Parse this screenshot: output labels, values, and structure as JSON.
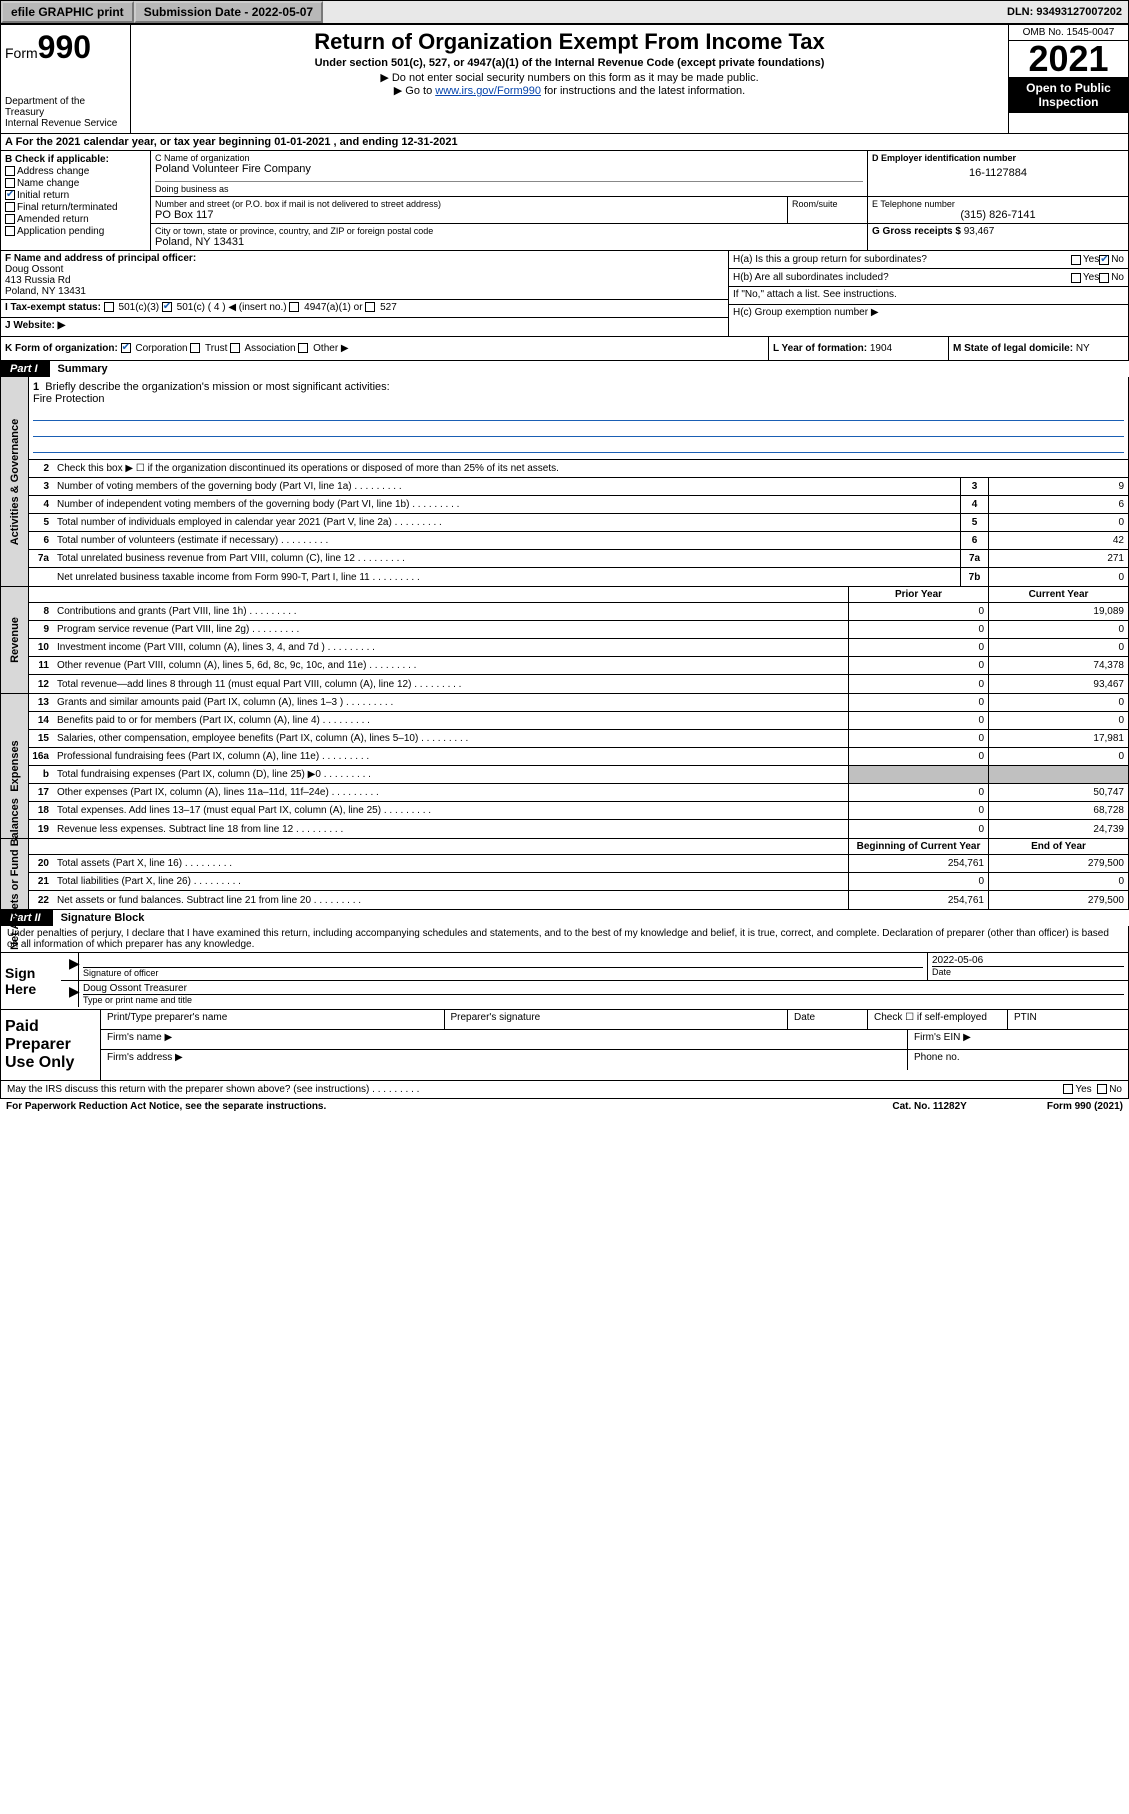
{
  "topbar": {
    "efile": "efile GRAPHIC print",
    "submission_label": "Submission Date - 2022-05-07",
    "dln": "DLN: 93493127007202"
  },
  "header": {
    "form_prefix": "Form",
    "form_number": "990",
    "dept": "Department of the Treasury",
    "irs": "Internal Revenue Service",
    "title": "Return of Organization Exempt From Income Tax",
    "subtitle": "Under section 501(c), 527, or 4947(a)(1) of the Internal Revenue Code (except private foundations)",
    "note1": "▶ Do not enter social security numbers on this form as it may be made public.",
    "note2_pre": "▶ Go to ",
    "note2_link": "www.irs.gov/Form990",
    "note2_post": " for instructions and the latest information.",
    "omb": "OMB No. 1545-0047",
    "year": "2021",
    "open_public": "Open to Public Inspection"
  },
  "row_a": "A For the 2021 calendar year, or tax year beginning 01-01-2021   , and ending 12-31-2021",
  "section_b": {
    "label": "B Check if applicable:",
    "items": [
      "Address change",
      "Name change",
      "Initial return",
      "Final return/terminated",
      "Amended return",
      "Application pending"
    ],
    "checked_index": 2
  },
  "section_c": {
    "name_label": "C Name of organization",
    "name": "Poland Volunteer Fire Company",
    "dba_label": "Doing business as",
    "dba": "",
    "street_label": "Number and street (or P.O. box if mail is not delivered to street address)",
    "room_label": "Room/suite",
    "street": "PO Box 117",
    "city_label": "City or town, state or province, country, and ZIP or foreign postal code",
    "city": "Poland, NY  13431"
  },
  "section_d": {
    "label": "D Employer identification number",
    "value": "16-1127884"
  },
  "section_e": {
    "label": "E Telephone number",
    "value": "(315) 826-7141"
  },
  "section_g": {
    "label": "G Gross receipts $",
    "value": "93,467"
  },
  "section_f": {
    "label": "F Name and address of principal officer:",
    "name": "Doug Ossont",
    "street": "413 Russia Rd",
    "city": "Poland, NY  13431"
  },
  "section_h": {
    "ha": "H(a)  Is this a group return for subordinates?",
    "ha_yes": "Yes",
    "ha_no": "No",
    "hb": "H(b)  Are all subordinates included?",
    "hb_yes": "Yes",
    "hb_no": "No",
    "hb_note": "If \"No,\" attach a list. See instructions.",
    "hc": "H(c)  Group exemption number ▶"
  },
  "section_i": {
    "label": "I   Tax-exempt status:",
    "opts": [
      "501(c)(3)",
      "501(c) ( 4 ) ◀ (insert no.)",
      "4947(a)(1) or",
      "527"
    ],
    "checked_index": 1
  },
  "section_j": {
    "label": "J   Website: ▶",
    "value": ""
  },
  "section_k": {
    "label": "K Form of organization:",
    "opts": [
      "Corporation",
      "Trust",
      "Association",
      "Other ▶"
    ],
    "checked_index": 0
  },
  "section_l": {
    "label": "L Year of formation:",
    "value": "1904"
  },
  "section_m": {
    "label": "M State of legal domicile:",
    "value": "NY"
  },
  "part1": {
    "label": "Part I",
    "title": "Summary"
  },
  "summary": {
    "q1": "Briefly describe the organization's mission or most significant activities:",
    "q1_val": "Fire Protection",
    "q2": "Check this box ▶ ☐  if the organization discontinued its operations or disposed of more than 25% of its net assets.",
    "rows_gov": [
      {
        "n": "3",
        "t": "Number of voting members of the governing body (Part VI, line 1a)",
        "b": "3",
        "v": "9"
      },
      {
        "n": "4",
        "t": "Number of independent voting members of the governing body (Part VI, line 1b)",
        "b": "4",
        "v": "6"
      },
      {
        "n": "5",
        "t": "Total number of individuals employed in calendar year 2021 (Part V, line 2a)",
        "b": "5",
        "v": "0"
      },
      {
        "n": "6",
        "t": "Total number of volunteers (estimate if necessary)",
        "b": "6",
        "v": "42"
      },
      {
        "n": "7a",
        "t": "Total unrelated business revenue from Part VIII, column (C), line 12",
        "b": "7a",
        "v": "271"
      },
      {
        "n": "",
        "t": "Net unrelated business taxable income from Form 990-T, Part I, line 11",
        "b": "7b",
        "v": "0"
      }
    ],
    "col_prior": "Prior Year",
    "col_current": "Current Year",
    "rows_rev": [
      {
        "n": "8",
        "t": "Contributions and grants (Part VIII, line 1h)",
        "p": "0",
        "c": "19,089"
      },
      {
        "n": "9",
        "t": "Program service revenue (Part VIII, line 2g)",
        "p": "0",
        "c": "0"
      },
      {
        "n": "10",
        "t": "Investment income (Part VIII, column (A), lines 3, 4, and 7d )",
        "p": "0",
        "c": "0"
      },
      {
        "n": "11",
        "t": "Other revenue (Part VIII, column (A), lines 5, 6d, 8c, 9c, 10c, and 11e)",
        "p": "0",
        "c": "74,378"
      },
      {
        "n": "12",
        "t": "Total revenue—add lines 8 through 11 (must equal Part VIII, column (A), line 12)",
        "p": "0",
        "c": "93,467"
      }
    ],
    "rows_exp": [
      {
        "n": "13",
        "t": "Grants and similar amounts paid (Part IX, column (A), lines 1–3 )",
        "p": "0",
        "c": "0"
      },
      {
        "n": "14",
        "t": "Benefits paid to or for members (Part IX, column (A), line 4)",
        "p": "0",
        "c": "0"
      },
      {
        "n": "15",
        "t": "Salaries, other compensation, employee benefits (Part IX, column (A), lines 5–10)",
        "p": "0",
        "c": "17,981"
      },
      {
        "n": "16a",
        "t": "Professional fundraising fees (Part IX, column (A), line 11e)",
        "p": "0",
        "c": "0"
      },
      {
        "n": "b",
        "t": "Total fundraising expenses (Part IX, column (D), line 25) ▶0",
        "p": "",
        "c": "",
        "gray": true
      },
      {
        "n": "17",
        "t": "Other expenses (Part IX, column (A), lines 11a–11d, 11f–24e)",
        "p": "0",
        "c": "50,747"
      },
      {
        "n": "18",
        "t": "Total expenses. Add lines 13–17 (must equal Part IX, column (A), line 25)",
        "p": "0",
        "c": "68,728"
      },
      {
        "n": "19",
        "t": "Revenue less expenses. Subtract line 18 from line 12",
        "p": "0",
        "c": "24,739"
      }
    ],
    "col_begin": "Beginning of Current Year",
    "col_end": "End of Year",
    "rows_net": [
      {
        "n": "20",
        "t": "Total assets (Part X, line 16)",
        "p": "254,761",
        "c": "279,500"
      },
      {
        "n": "21",
        "t": "Total liabilities (Part X, line 26)",
        "p": "0",
        "c": "0"
      },
      {
        "n": "22",
        "t": "Net assets or fund balances. Subtract line 21 from line 20",
        "p": "254,761",
        "c": "279,500"
      }
    ],
    "side_gov": "Activities & Governance",
    "side_rev": "Revenue",
    "side_exp": "Expenses",
    "side_net": "Net Assets or Fund Balances"
  },
  "part2": {
    "label": "Part II",
    "title": "Signature Block"
  },
  "sig": {
    "declaration": "Under penalties of perjury, I declare that I have examined this return, including accompanying schedules and statements, and to the best of my knowledge and belief, it is true, correct, and complete. Declaration of preparer (other than officer) is based on all information of which preparer has any knowledge.",
    "sign_here": "Sign Here",
    "sig_officer": "Signature of officer",
    "date_label": "Date",
    "date": "2022-05-06",
    "officer_name": "Doug Ossont  Treasurer",
    "type_name": "Type or print name and title"
  },
  "prep": {
    "label": "Paid Preparer Use Only",
    "r1": [
      "Print/Type preparer's name",
      "Preparer's signature",
      "Date",
      "Check ☐ if self-employed",
      "PTIN"
    ],
    "r2_firm": "Firm's name  ▶",
    "r2_ein": "Firm's EIN ▶",
    "r3_addr": "Firm's address ▶",
    "r3_phone": "Phone no."
  },
  "footer": {
    "q": "May the IRS discuss this return with the preparer shown above? (see instructions)",
    "yes": "Yes",
    "no": "No"
  },
  "bottom": {
    "left": "For Paperwork Reduction Act Notice, see the separate instructions.",
    "cat": "Cat. No. 11282Y",
    "form": "Form 990 (2021)"
  }
}
